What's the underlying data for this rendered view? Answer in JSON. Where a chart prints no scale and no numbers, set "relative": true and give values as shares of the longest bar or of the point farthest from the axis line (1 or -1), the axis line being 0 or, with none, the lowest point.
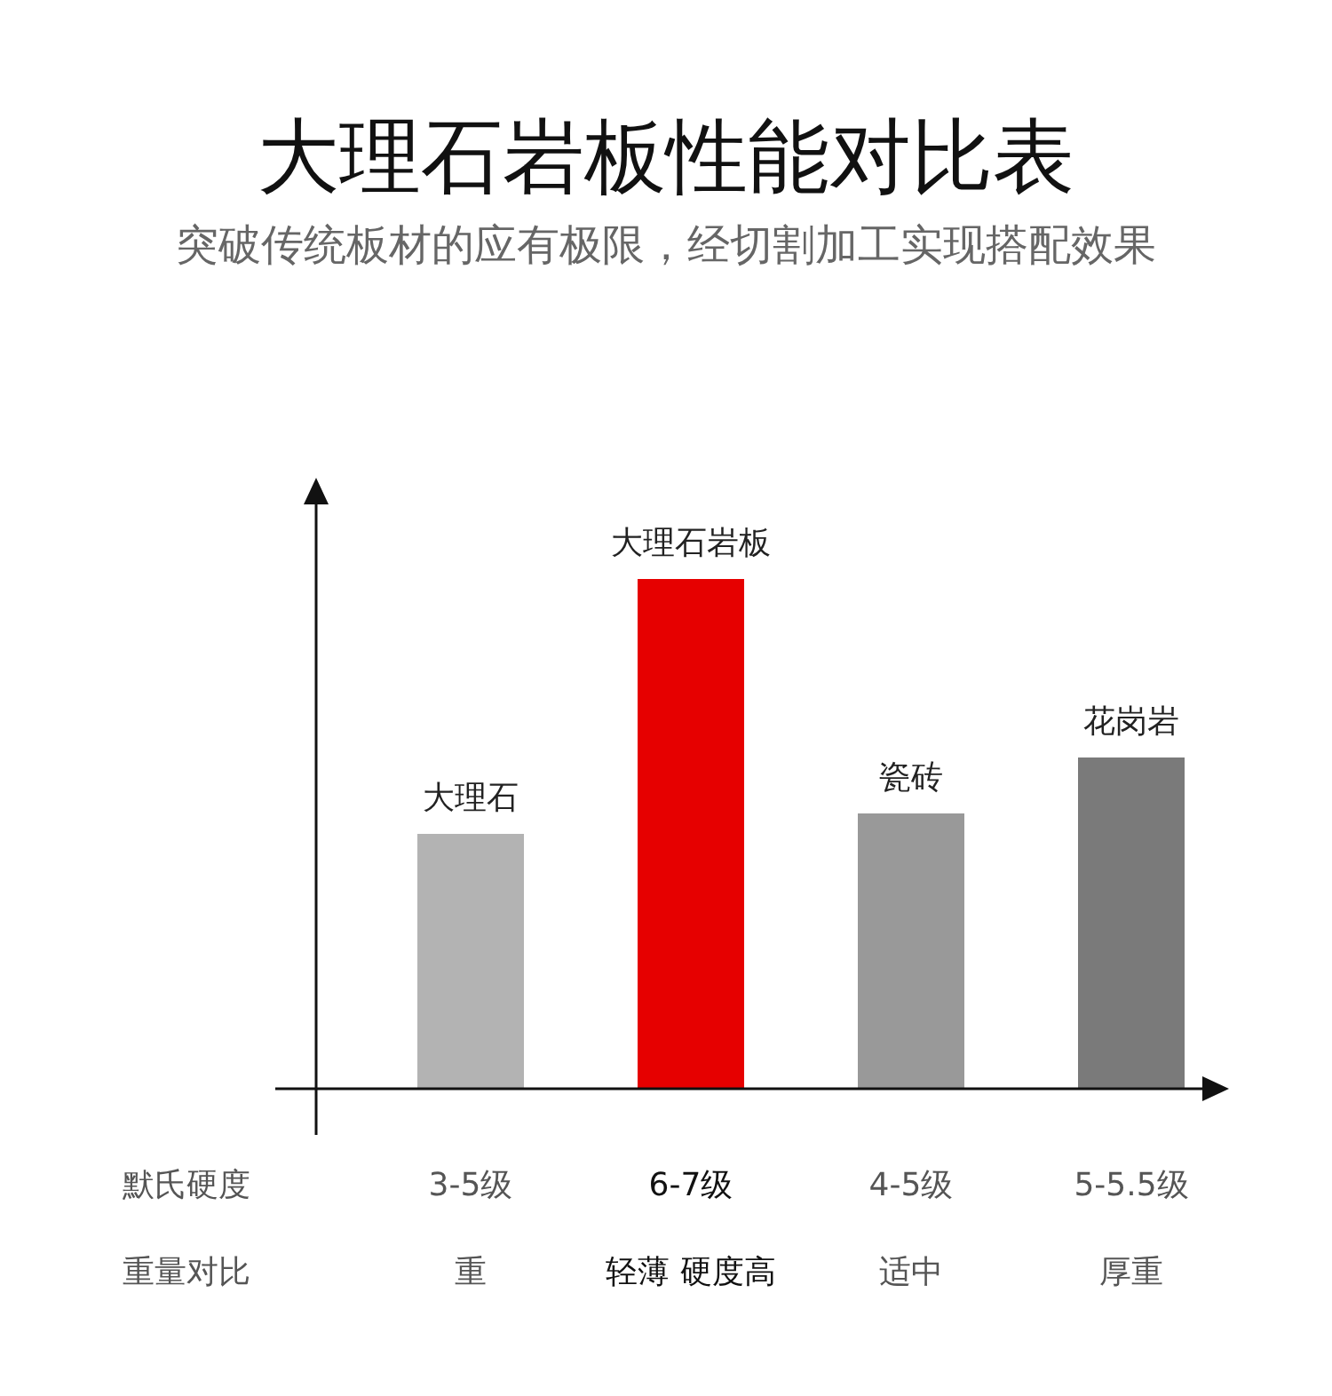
{
  "chart_data": {
    "type": "bar",
    "title": "大理石岩板性能对比表",
    "subtitle": "突破传统板材的应有极限，经切割加工实现搭配效果",
    "categories": [
      "大理石",
      "大理石岩板",
      "瓷砖",
      "花岗岩"
    ],
    "values": [
      0.5,
      1,
      0.54,
      0.65
    ],
    "colors": [
      "#b3b3b3",
      "#e60000",
      "#999999",
      "#7a7a7a"
    ],
    "relative": true,
    "legend": false,
    "annotations": [
      "默氏硬度",
      "3-5级",
      "6-7级",
      "4-5级",
      "5-5.5级",
      "重量对比",
      "重",
      "轻薄 硬度高",
      "适中",
      "厚重"
    ]
  }
}
